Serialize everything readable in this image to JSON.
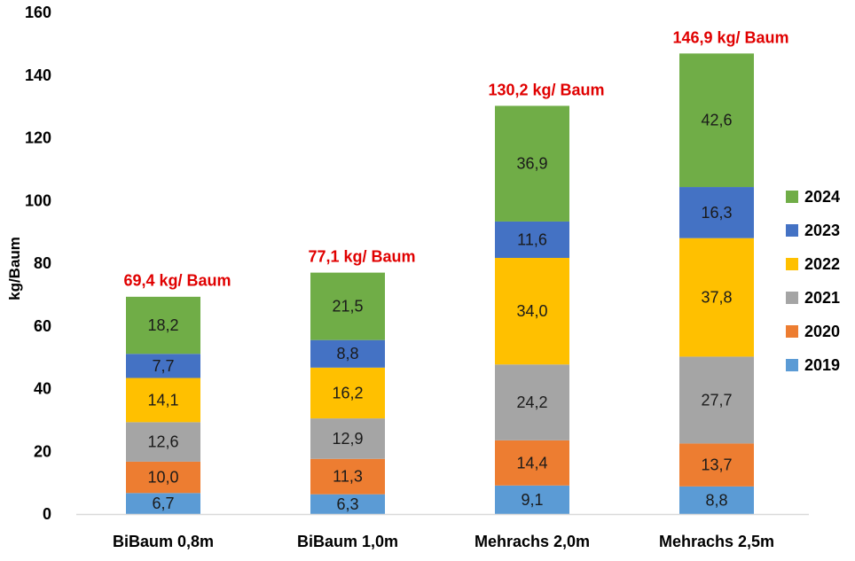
{
  "chart_data": {
    "type": "bar",
    "stacked": true,
    "title": "",
    "xlabel": "",
    "ylabel": "kg/Baum",
    "ylim": [
      0,
      160
    ],
    "yticks": [
      "0",
      "20",
      "40",
      "60",
      "80",
      "100",
      "120",
      "140",
      "160"
    ],
    "grid": false,
    "legend_position": "right",
    "categories": [
      "BiBaum 0,8m",
      "BiBaum 1,0m",
      "Mehrachs 2,0m",
      "Mehrachs 2,5m"
    ],
    "series": [
      {
        "name": "2019",
        "color": "#5b9bd5",
        "values": [
          6.7,
          6.3,
          9.1,
          8.8
        ],
        "labels": [
          "6,7",
          "6,3",
          "9,1",
          "8,8"
        ]
      },
      {
        "name": "2020",
        "color": "#ed7d31",
        "values": [
          10.0,
          11.3,
          14.4,
          13.7
        ],
        "labels": [
          "10,0",
          "11,3",
          "14,4",
          "13,7"
        ]
      },
      {
        "name": "2021",
        "color": "#a5a5a5",
        "values": [
          12.6,
          12.9,
          24.2,
          27.7
        ],
        "labels": [
          "12,6",
          "12,9",
          "24,2",
          "27,7"
        ]
      },
      {
        "name": "2022",
        "color": "#ffc000",
        "values": [
          14.1,
          16.2,
          34.0,
          37.8
        ],
        "labels": [
          "14,1",
          "16,2",
          "34,0",
          "37,8"
        ]
      },
      {
        "name": "2023",
        "color": "#4472c4",
        "values": [
          7.7,
          8.8,
          11.6,
          16.3
        ],
        "labels": [
          "7,7",
          "8,8",
          "11,6",
          "16,3"
        ]
      },
      {
        "name": "2024",
        "color": "#70ad47",
        "values": [
          18.2,
          21.5,
          36.9,
          42.6
        ],
        "labels": [
          "18,2",
          "21,5",
          "36,9",
          "42,6"
        ]
      }
    ],
    "totals": [
      69.4,
      77.1,
      130.2,
      146.9
    ],
    "total_labels": [
      "69,4 kg/ Baum",
      "77,1 kg/ Baum",
      "130,2 kg/ Baum",
      "146,9 kg/ Baum"
    ],
    "total_label_color": "#e00000",
    "axis_color": "#d9d9d9"
  }
}
